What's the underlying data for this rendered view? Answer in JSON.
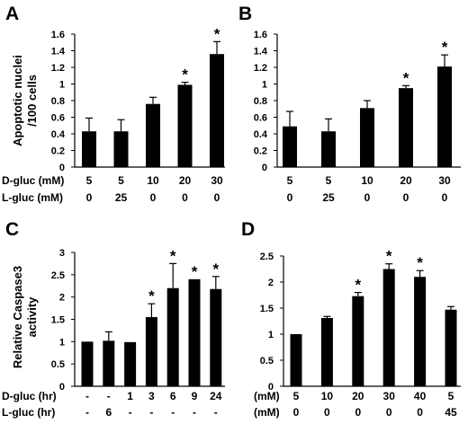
{
  "chart_data": [
    {
      "panel": "A",
      "type": "bar",
      "ylabel_lines": [
        "Apoptotic nuclei",
        "/100 cells"
      ],
      "ylim": [
        0,
        1.6
      ],
      "yticks": [
        "0",
        "0.2",
        "0.4",
        "0.6",
        "0.8",
        "1",
        "1.2",
        "1.4",
        "1.6"
      ],
      "values": [
        0.43,
        0.43,
        0.76,
        0.99,
        1.36
      ],
      "errors": [
        0.16,
        0.14,
        0.08,
        0.03,
        0.15
      ],
      "significant": [
        false,
        false,
        false,
        true,
        true
      ],
      "star": "*",
      "conditions": [
        {
          "label": "D-gluc (mM)",
          "values": [
            "5",
            "5",
            "10",
            "20",
            "30"
          ]
        },
        {
          "label": "L-gluc (mM)",
          "values": [
            "0",
            "25",
            "0",
            "0",
            "0"
          ]
        }
      ]
    },
    {
      "panel": "B",
      "type": "bar",
      "ylim": [
        0,
        1.6
      ],
      "yticks": [
        "0",
        "0.2",
        "0.4",
        "0.6",
        "0.8",
        "1",
        "1.2",
        "1.4",
        "1.6"
      ],
      "values": [
        0.49,
        0.43,
        0.71,
        0.95,
        1.21
      ],
      "errors": [
        0.18,
        0.15,
        0.09,
        0.03,
        0.14
      ],
      "significant": [
        false,
        false,
        false,
        true,
        true
      ],
      "star": "*",
      "conditions": [
        {
          "label": "",
          "values": [
            "5",
            "5",
            "10",
            "20",
            "30"
          ]
        },
        {
          "label": "",
          "values": [
            "0",
            "25",
            "0",
            "0",
            "0"
          ]
        }
      ]
    },
    {
      "panel": "C",
      "type": "bar",
      "ylabel_lines": [
        "Relative Caspase3",
        "activity"
      ],
      "ylim": [
        0,
        3
      ],
      "yticks": [
        "0",
        "0.5",
        "1",
        "1.5",
        "2",
        "2.5",
        "3"
      ],
      "values": [
        1.0,
        1.02,
        0.99,
        1.55,
        2.2,
        2.4,
        2.18
      ],
      "errors": [
        0.0,
        0.2,
        0.0,
        0.3,
        0.55,
        0.0,
        0.28
      ],
      "significant": [
        false,
        false,
        false,
        true,
        true,
        true,
        true
      ],
      "star": "*",
      "conditions": [
        {
          "label": "D-gluc (hr)",
          "values": [
            "-",
            "-",
            "1",
            "3",
            "6",
            "9",
            "24"
          ]
        },
        {
          "label": "L-gluc (hr)",
          "values": [
            "-",
            "6",
            "-",
            "-",
            "-",
            "-",
            "-"
          ]
        }
      ]
    },
    {
      "panel": "D",
      "type": "bar",
      "ylim": [
        0,
        2.5
      ],
      "yticks": [
        "0",
        "0.5",
        "1",
        "1.5",
        "2",
        "2.5"
      ],
      "values": [
        1.0,
        1.31,
        1.73,
        2.25,
        2.1,
        1.47
      ],
      "errors": [
        0.0,
        0.03,
        0.07,
        0.1,
        0.12,
        0.06
      ],
      "significant": [
        false,
        false,
        true,
        true,
        true,
        false
      ],
      "star": "*",
      "conditions": [
        {
          "label": "(mM)",
          "values": [
            "5",
            "10",
            "20",
            "30",
            "40",
            "5"
          ]
        },
        {
          "label": "(mM)",
          "values": [
            "0",
            "0",
            "0",
            "0",
            "0",
            "45"
          ]
        }
      ]
    }
  ]
}
